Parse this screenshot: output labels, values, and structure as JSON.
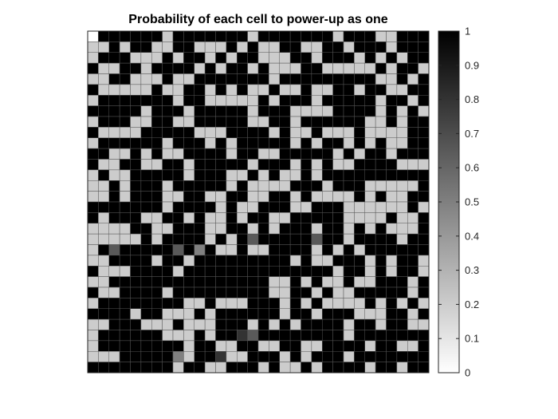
{
  "chart_data": {
    "type": "heatmap",
    "title": "Probability of each cell to power-up as one",
    "xlabel": "",
    "ylabel": "",
    "rows": 32,
    "cols": 32,
    "colormap": "gray-reversed",
    "clim": [
      0,
      1
    ],
    "colorbar_ticks": [
      0,
      0.1,
      0.2,
      0.3,
      0.4,
      0.5,
      0.6,
      0.7,
      0.8,
      0.9,
      1
    ],
    "colorbar_tick_labels": [
      "0",
      "0.1",
      "0.2",
      "0.3",
      "0.4",
      "0.5",
      "0.6",
      "0.7",
      "0.8",
      "0.9",
      "1"
    ],
    "level_values": [
      0.0,
      0.1,
      0.2,
      0.35,
      0.5,
      0.65,
      0.8,
      1.0
    ],
    "value_encoding": "each row string: one digit per column, digit = index into level_values",
    "values": [
      "07777772777777727777777277722777",
      "22727722772227272277227727772777",
      "27772227277272772227727772727277",
      "72277277772727727222772222272772",
      "22772227227777777277777777722727",
      "72222272277272722722722772772277",
      "27777777277222227277727777727727",
      "77777277727777727772222777727272",
      "27772277227777722772777777227277",
      "72222777772227777272272227222277",
      "27777772777272777772727727272277",
      "77227272277772772277777272772777",
      "72277227727777727772727227777222",
      "27227777727772272722727777777777",
      "22727772777772722227772777222227",
      "22727772277227722772722227272277",
      "77777772777727227772277722222272",
      "72777227727227277227777722227227",
      "22227722777227727277727727272227",
      "22222727777272757777757727777277",
      "27577777574722722777727272777777",
      "22777727727777777772722777272772",
      "72227777277777777777777277272772",
      "22777777777777777227272272277727",
      "72277772777777777227727227777727",
      "27777777722722277727272222727272",
      "77772772227277777727727772227727",
      "22777222722277727272777727727722",
      "27777772227277657777777727777777",
      "27777777727722772277227777277227",
      "22277777427762277727277727777777",
      "77777777277227772722727777277277"
    ]
  }
}
